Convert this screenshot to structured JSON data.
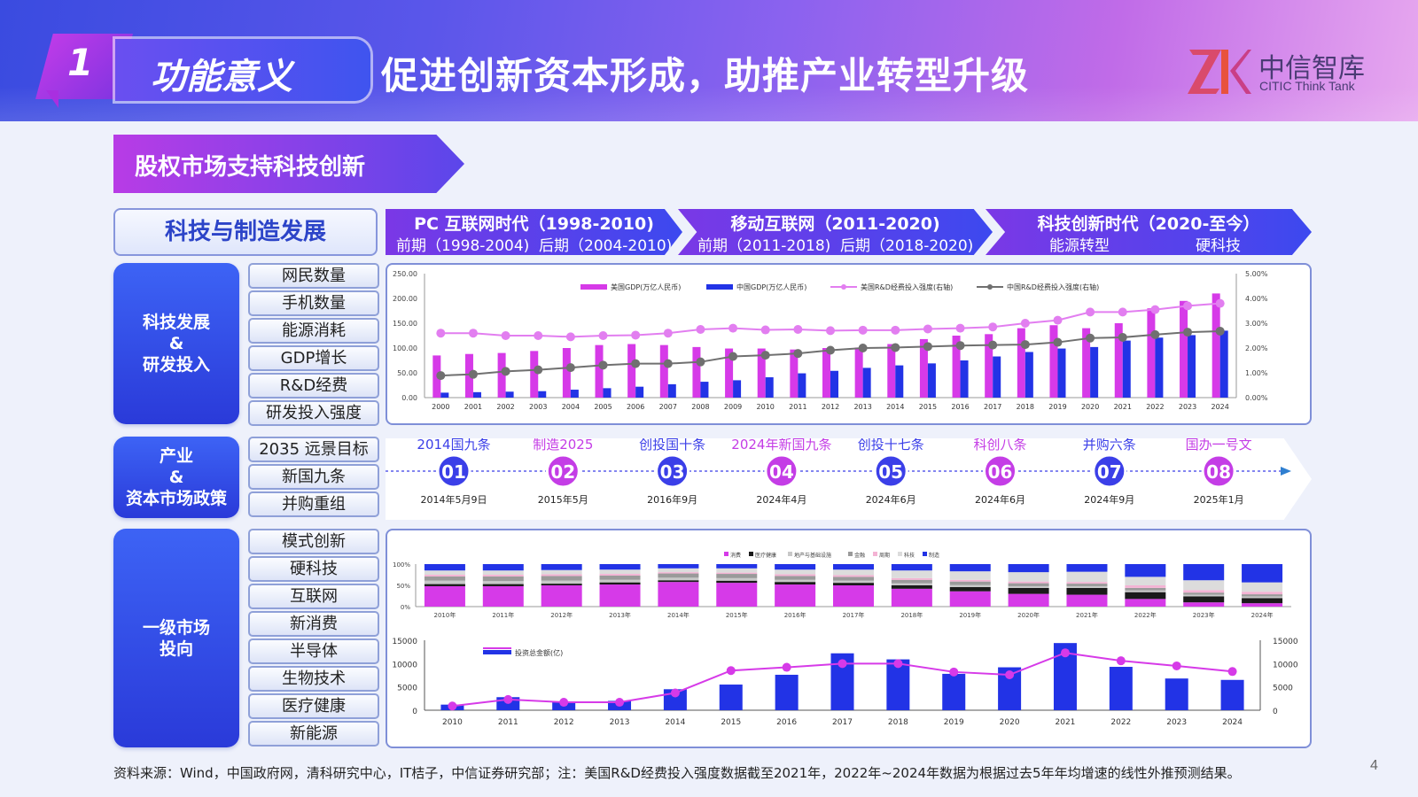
{
  "header": {
    "number": "1",
    "section": "功能意义",
    "title": "促进创新资本形成，助推产业转型升级",
    "logo_cn": "中信智库",
    "logo_en": "CITIC Think Tank"
  },
  "subheader": "股权市场支持科技创新",
  "dev_title": "科技与制造发展",
  "eras": [
    {
      "title": "PC 互联网时代（1998-2010)",
      "left": "前期（1998-2004)",
      "right": "后期（2004-2010)"
    },
    {
      "title": "移动互联网（2011-2020)",
      "left": "前期（2011-2018)",
      "right": "后期（2018-2020)"
    },
    {
      "title": "科技创新时代（2020-至今）",
      "left": "能源转型",
      "right": "硬科技"
    }
  ],
  "sections": {
    "tech": {
      "label": "科技发展\n&\n研发投入",
      "tags": [
        "网民数量",
        "手机数量",
        "能源消耗",
        "GDP增长",
        "R&D经费",
        "研发投入强度"
      ]
    },
    "policy": {
      "label": "产业\n&\n资本市场政策",
      "tags": [
        "2035 远景目标",
        "新国九条",
        "并购重组"
      ]
    },
    "market": {
      "label": "一级市场\n投向",
      "tags": [
        "模式创新",
        "硬科技",
        "互联网",
        "新消费",
        "半导体",
        "生物技术",
        "医疗健康",
        "新能源"
      ]
    }
  },
  "policies": [
    {
      "name": "2014国九条",
      "num": "01",
      "date": "2014年5月9日",
      "color": "#3b3fe8"
    },
    {
      "name": "制造2025",
      "num": "02",
      "date": "2015年5月",
      "color": "#c43de6"
    },
    {
      "name": "创投国十条",
      "num": "03",
      "date": "2016年9月",
      "color": "#3b3fe8"
    },
    {
      "name": "2024年新国九条",
      "num": "04",
      "date": "2024年4月",
      "color": "#c43de6"
    },
    {
      "name": "创投十七条",
      "num": "05",
      "date": "2024年6月",
      "color": "#3b3fe8"
    },
    {
      "name": "科创八条",
      "num": "06",
      "date": "2024年6月",
      "color": "#c43de6"
    },
    {
      "name": "并购六条",
      "num": "07",
      "date": "2024年9月",
      "color": "#3b3fe8"
    },
    {
      "name": "国办一号文",
      "num": "08",
      "date": "2025年1月",
      "color": "#c43de6"
    }
  ],
  "colors": {
    "magenta": "#d63ae8",
    "blue": "#2233e6",
    "pink_line": "#e27ef0",
    "gray_line": "#707070",
    "panel_border": "#7f8fd8"
  },
  "chart_data": [
    {
      "type": "bar",
      "categories": [
        "2000",
        "2001",
        "2002",
        "2003",
        "2004",
        "2005",
        "2006",
        "2007",
        "2008",
        "2009",
        "2010",
        "2011",
        "2012",
        "2013",
        "2014",
        "2015",
        "2016",
        "2017",
        "2018",
        "2019",
        "2020",
        "2021",
        "2022",
        "2023",
        "2024"
      ],
      "series": [
        {
          "name": "美国GDP(万亿人民币)",
          "type": "bar",
          "axis": "left",
          "values": [
            85,
            88,
            90,
            94,
            100,
            106,
            108,
            106,
            102,
            99,
            99,
            97,
            100,
            101,
            108,
            118,
            125,
            128,
            140,
            146,
            140,
            150,
            180,
            195,
            210
          ]
        },
        {
          "name": "中国GDP(万亿人民币)",
          "type": "bar",
          "axis": "left",
          "values": [
            10,
            11,
            12,
            13,
            16,
            19,
            22,
            27,
            32,
            35,
            41,
            49,
            54,
            60,
            65,
            69,
            75,
            83,
            92,
            99,
            102,
            115,
            121,
            126,
            135
          ]
        },
        {
          "name": "美国R&D经费投入强度(右轴)",
          "type": "line",
          "axis": "right",
          "values": [
            2.6,
            2.6,
            2.5,
            2.5,
            2.45,
            2.5,
            2.52,
            2.6,
            2.75,
            2.8,
            2.73,
            2.75,
            2.7,
            2.72,
            2.72,
            2.77,
            2.8,
            2.85,
            3.0,
            3.12,
            3.45,
            3.45,
            3.55,
            3.7,
            3.8
          ]
        },
        {
          "name": "中国R&D经费投入强度(右轴)",
          "type": "line",
          "axis": "right",
          "values": [
            0.89,
            0.94,
            1.06,
            1.12,
            1.21,
            1.31,
            1.37,
            1.37,
            1.44,
            1.66,
            1.71,
            1.78,
            1.91,
            2.0,
            2.02,
            2.06,
            2.1,
            2.12,
            2.14,
            2.23,
            2.4,
            2.43,
            2.54,
            2.64,
            2.68
          ]
        }
      ],
      "yticks_left": [
        "0.00",
        "50.00",
        "100.00",
        "150.00",
        "200.00",
        "250.00"
      ],
      "yticks_right": [
        "0.00%",
        "1.00%",
        "2.00%",
        "3.00%",
        "4.00%",
        "5.00%"
      ],
      "ylim": [
        0,
        250
      ],
      "ylim_right": [
        0,
        5
      ],
      "legend": "top"
    },
    {
      "type": "bar",
      "stacked": true,
      "percent": true,
      "categories": [
        "2010年",
        "2011年",
        "2012年",
        "2013年",
        "2014年",
        "2015年",
        "2016年",
        "2017年",
        "2018年",
        "2019年",
        "2020年",
        "2021年",
        "2022年",
        "2023年",
        "2024年"
      ],
      "legend_labels": [
        "消费",
        "医疗健康",
        "地产与基础设施",
        "金融",
        "周期",
        "科技",
        "制造"
      ],
      "series": [
        {
          "name": "消费",
          "color": "#d63ae8",
          "values": [
            48,
            48,
            50,
            52,
            58,
            56,
            52,
            50,
            42,
            36,
            30,
            28,
            18,
            10,
            8
          ]
        },
        {
          "name": "医疗健康",
          "color": "#1a1a1a",
          "values": [
            5,
            5,
            4,
            5,
            4,
            5,
            6,
            6,
            8,
            10,
            14,
            16,
            16,
            14,
            12
          ]
        },
        {
          "name": "地产与基础设施",
          "color": "#c8c8c8",
          "values": [
            8,
            7,
            7,
            6,
            6,
            6,
            5,
            5,
            5,
            5,
            4,
            4,
            4,
            4,
            4
          ]
        },
        {
          "name": "金融",
          "color": "#9a9a9a",
          "values": [
            10,
            11,
            11,
            10,
            10,
            10,
            9,
            9,
            8,
            8,
            7,
            6,
            6,
            5,
            5
          ]
        },
        {
          "name": "周期",
          "color": "#f4b3d4",
          "values": [
            4,
            4,
            4,
            4,
            3,
            3,
            4,
            4,
            4,
            4,
            4,
            4,
            6,
            6,
            6
          ]
        },
        {
          "name": "科技",
          "color": "#dcdcdc",
          "values": [
            10,
            10,
            10,
            10,
            9,
            10,
            11,
            13,
            18,
            20,
            22,
            24,
            20,
            23,
            22
          ]
        },
        {
          "name": "制造",
          "color": "#2233e6",
          "values": [
            15,
            15,
            14,
            13,
            10,
            10,
            13,
            13,
            15,
            17,
            19,
            18,
            30,
            38,
            43
          ]
        }
      ],
      "yticks": [
        "0%",
        "50%",
        "100%"
      ]
    },
    {
      "type": "bar",
      "categories": [
        "2010",
        "2011",
        "2012",
        "2013",
        "2014",
        "2015",
        "2016",
        "2017",
        "2018",
        "2019",
        "2020",
        "2021",
        "2022",
        "2023",
        "2024"
      ],
      "series": [
        {
          "name": "投资总金额(亿)",
          "type": "bar",
          "values": [
            1200,
            2800,
            1800,
            2000,
            4500,
            5500,
            7600,
            12200,
            10900,
            7800,
            9200,
            14400,
            9300,
            6800,
            6500
          ]
        },
        {
          "name": "投资总金额(亿)",
          "type": "line",
          "values": [
            900,
            2300,
            1700,
            1700,
            3700,
            8500,
            9200,
            10000,
            10000,
            8200,
            7600,
            12300,
            10600,
            9500,
            8300
          ]
        }
      ],
      "legend_label": "投资总金额(亿)",
      "yticks": [
        "0",
        "5000",
        "10000",
        "15000"
      ],
      "ylim": [
        0,
        15000
      ]
    }
  ],
  "footer": {
    "source": "资料来源：Wind，中国政府网，清科研究中心，IT桔子，中信证券研究部；注：美国R&D经费投入强度数据截至2021年，2022年~2024年数据为根据过去5年年均增速的线性外推预测结果。",
    "page": "4"
  }
}
